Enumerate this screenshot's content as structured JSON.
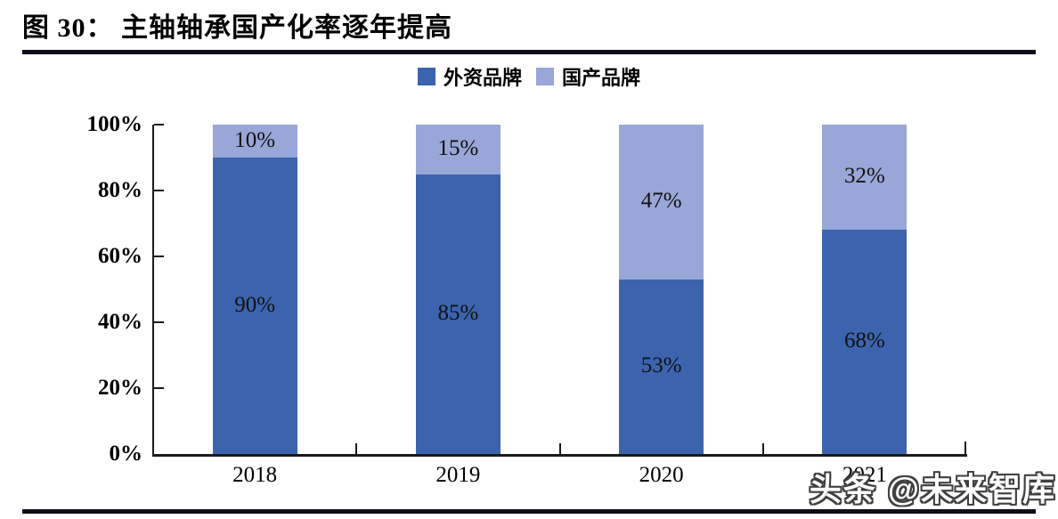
{
  "figure": {
    "title": "图 30： 主轴轴承国产化率逐年提高",
    "watermark": "头条 @未来智库"
  },
  "chart_data": {
    "type": "bar",
    "stacked": true,
    "orientation": "vertical",
    "title": "主轴轴承国产化率逐年提高",
    "categories": [
      "2018",
      "2019",
      "2020",
      "2021"
    ],
    "series": [
      {
        "name": "外资品牌",
        "color": "#3c64ae",
        "values": [
          90,
          85,
          53,
          68
        ]
      },
      {
        "name": "国产品牌",
        "color": "#98a6d8",
        "values": [
          10,
          15,
          47,
          32
        ]
      }
    ],
    "value_label_suffix": "%",
    "ylim": [
      0,
      100
    ],
    "yticks": [
      {
        "value": 0,
        "label": "0%"
      },
      {
        "value": 20,
        "label": "20%"
      },
      {
        "value": 40,
        "label": "40%"
      },
      {
        "value": 60,
        "label": "60%"
      },
      {
        "value": 80,
        "label": "80%"
      },
      {
        "value": 100,
        "label": "100%"
      }
    ],
    "xlabel": "",
    "ylabel": "",
    "grid": false,
    "legend_position": "top-center",
    "ticks_direction": "inward"
  },
  "colors": {
    "axis": "#1a1a1a",
    "rule": "#0f0f1a",
    "foreign_brand": "#3c64ae",
    "domestic_brand": "#98a6d8",
    "watermark_fill": "#ffffff",
    "watermark_outline": "#3f3f3f"
  }
}
